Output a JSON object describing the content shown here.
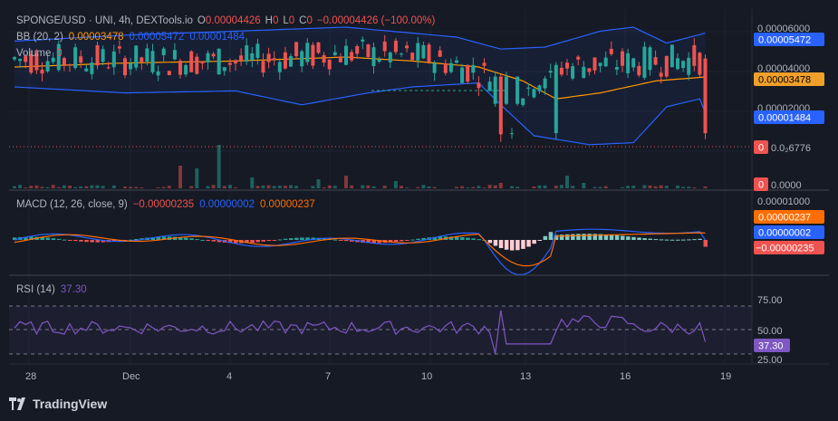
{
  "header": {
    "symbol": "SPONGE/USD · UNI, 4h, DEXTools.io",
    "o_label": "O",
    "o_value": "0.00004426",
    "h_label": "H",
    "h_value": "0",
    "l_label": "L",
    "l_value": "0",
    "c_label": "C",
    "c_value": "0",
    "change": "−0.00004426 (−100.00%)"
  },
  "bb_legend": {
    "name": "BB (20, 2)",
    "basis": "0.00003478",
    "upper": "0.00005472",
    "lower": "0.00001484"
  },
  "volume_legend": {
    "name": "Volume",
    "value": "0"
  },
  "macd_legend": {
    "name": "MACD (12, 26, close, 9)",
    "hist": "−0.00000235",
    "macd": "0.00000002",
    "signal": "0.00000237"
  },
  "rsi_legend": {
    "name": "RSI (14)",
    "value": "37.30"
  },
  "price_axis": {
    "ticks": [
      "0.00006000",
      "0.00004000",
      "0.00002000",
      "0.0₂6776",
      "0.0000"
    ],
    "tags": {
      "upper": "0.00005472",
      "basis": "0.00003478",
      "lower": "0.00001484",
      "last": "0",
      "volume": "0"
    }
  },
  "macd_axis": {
    "ticks": [
      "0.00001000"
    ],
    "tags": {
      "signal": "0.00000237",
      "macd": "0.00000002",
      "hist": "−0.00000235"
    }
  },
  "rsi_axis": {
    "ticks": [
      "75.00",
      "50.00",
      "25.00"
    ],
    "tag": "37.30"
  },
  "time_axis": {
    "labels": [
      "28",
      "Dec",
      "4",
      "7",
      "10",
      "13",
      "16",
      "19"
    ]
  },
  "brand": {
    "text": "TradingView"
  },
  "colors": {
    "background": "#161a25",
    "up": "#26a69a",
    "down": "#ef5350",
    "bb_upper_lower": "#2962ff",
    "bb_basis": "#ff9800",
    "macd_line": "#2962ff",
    "signal_line": "#ff6d00",
    "rsi_line": "#7e57c2",
    "tag_blue": "#2962ff",
    "tag_orange": "#f0a02a",
    "tag_red": "#ef5350",
    "tag_purple": "#7e57c2"
  },
  "chart_data": [
    {
      "type": "candlestick",
      "title": "SPONGE/USD · UNI, 4h",
      "y_range": [
        0,
        6.2e-05
      ],
      "x_range": [
        27.0,
        19.6
      ],
      "x_unit": "day (Nov 27 → Dec 19)",
      "overlays": [
        "Bollinger Bands (20, 2)"
      ],
      "series": [
        {
          "name": "price",
          "note": "last candle drops to 0 (−100.00%)",
          "last_open": 4.426e-05,
          "last_close": 0
        },
        {
          "name": "BB upper",
          "last": 5.472e-05
        },
        {
          "name": "BB basis",
          "last": 3.478e-05
        },
        {
          "name": "BB lower",
          "last": 1.484e-05
        }
      ],
      "reference_line": {
        "value": 6.776e-06,
        "label": "0.0₂6776"
      }
    },
    {
      "type": "bar",
      "title": "Volume",
      "last": 0
    },
    {
      "type": "line",
      "title": "MACD (12, 26, close, 9)",
      "series": [
        {
          "name": "MACD",
          "last": 2e-08
        },
        {
          "name": "Signal",
          "last": 2.37e-06
        },
        {
          "name": "Histogram",
          "last": -2.35e-06
        }
      ],
      "y_ticks": [
        1e-05
      ]
    },
    {
      "type": "line",
      "title": "RSI (14)",
      "y_range": [
        20,
        85
      ],
      "bands": [
        30,
        50,
        70
      ],
      "y_ticks": [
        25,
        50,
        75
      ],
      "series": [
        {
          "name": "RSI",
          "last": 37.3
        }
      ]
    }
  ]
}
